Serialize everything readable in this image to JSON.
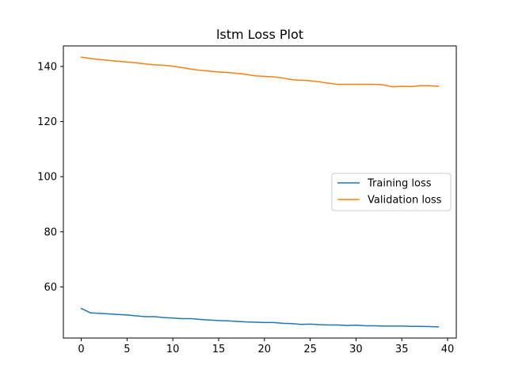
{
  "chart_data": {
    "type": "line",
    "title": "lstm Loss Plot",
    "xlabel": "",
    "ylabel": "",
    "xlim": [
      -1.95,
      40.95
    ],
    "ylim": [
      41.45,
      147.45
    ],
    "xticks": [
      0,
      5,
      10,
      15,
      20,
      25,
      30,
      35,
      40
    ],
    "yticks": [
      60,
      80,
      100,
      120,
      140
    ],
    "grid": false,
    "legend_position": "center-right",
    "x": [
      0,
      1,
      2,
      3,
      4,
      5,
      6,
      7,
      8,
      9,
      10,
      11,
      12,
      13,
      14,
      15,
      16,
      17,
      18,
      19,
      20,
      21,
      22,
      23,
      24,
      25,
      26,
      27,
      28,
      29,
      30,
      31,
      32,
      33,
      34,
      35,
      36,
      37,
      38,
      39
    ],
    "series": [
      {
        "name": "Training loss",
        "color": "#1f77b4",
        "values": [
          52.2,
          50.6,
          50.4,
          50.2,
          50.0,
          49.8,
          49.5,
          49.2,
          49.2,
          48.9,
          48.7,
          48.5,
          48.5,
          48.2,
          48.0,
          47.8,
          47.7,
          47.5,
          47.3,
          47.2,
          47.1,
          47.1,
          46.8,
          46.7,
          46.4,
          46.5,
          46.3,
          46.2,
          46.2,
          46.0,
          46.1,
          45.9,
          45.9,
          45.8,
          45.8,
          45.8,
          45.7,
          45.7,
          45.6,
          45.5
        ]
      },
      {
        "name": "Validation loss",
        "color": "#ff7f0e",
        "values": [
          143.4,
          142.9,
          142.5,
          142.2,
          141.9,
          141.6,
          141.3,
          140.9,
          140.6,
          140.4,
          140.1,
          139.6,
          139.0,
          138.6,
          138.3,
          138.0,
          137.8,
          137.5,
          137.1,
          136.6,
          136.4,
          136.2,
          135.8,
          135.2,
          135.0,
          134.8,
          134.4,
          133.9,
          133.5,
          133.5,
          133.5,
          133.5,
          133.5,
          133.3,
          132.6,
          132.8,
          132.7,
          133.0,
          133.0,
          132.8
        ]
      }
    ]
  }
}
